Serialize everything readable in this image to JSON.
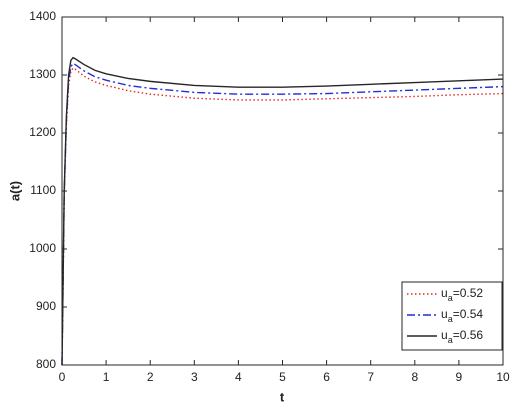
{
  "chart_data": {
    "type": "line",
    "x_label": "t",
    "y_label": "a(t)",
    "x": [
      0,
      0.05,
      0.1,
      0.15,
      0.2,
      0.25,
      0.3,
      0.5,
      0.75,
      1,
      1.5,
      2,
      3,
      4,
      5,
      6,
      7,
      8,
      9,
      10
    ],
    "series": [
      {
        "name": "ua=0.52",
        "color": "#e8271f",
        "dash": "1.5 2.5",
        "values": [
          800,
          1090,
          1215,
          1282,
          1306,
          1312,
          1310,
          1298,
          1288,
          1282,
          1273,
          1267,
          1260,
          1257,
          1257,
          1259,
          1261,
          1263,
          1266,
          1268
        ]
      },
      {
        "name": "ua=0.54",
        "color": "#1f2fd6",
        "dash": "8 3 2 3",
        "values": [
          800,
          1095,
          1222,
          1290,
          1314,
          1320,
          1318,
          1307,
          1297,
          1291,
          1282,
          1277,
          1270,
          1267,
          1267,
          1268,
          1271,
          1274,
          1277,
          1280
        ]
      },
      {
        "name": "ua=0.56",
        "color": "#262626",
        "dash": "none",
        "values": [
          800,
          1100,
          1230,
          1300,
          1325,
          1330,
          1328,
          1318,
          1308,
          1302,
          1294,
          1289,
          1282,
          1279,
          1279,
          1281,
          1284,
          1287,
          1290,
          1293
        ]
      }
    ],
    "xlim": [
      0,
      10
    ],
    "xticks": [
      0,
      1,
      2,
      3,
      4,
      5,
      6,
      7,
      8,
      9,
      10
    ],
    "ylim": [
      800,
      1400
    ],
    "yticks": [
      800,
      900,
      1000,
      1100,
      1200,
      1300,
      1400
    ],
    "grid": false,
    "legend_position": "lower right"
  }
}
